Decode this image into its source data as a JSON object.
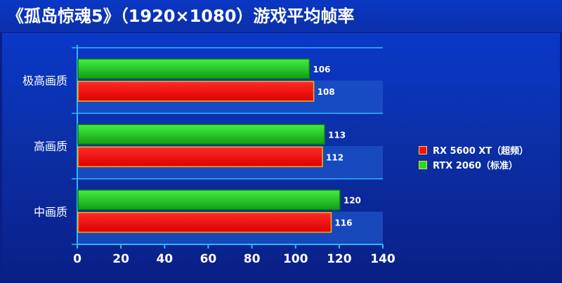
{
  "title": "《孤岛惊魂5》（1920×1080）游戏平均帧率",
  "chart_data": {
    "type": "bar",
    "orientation": "horizontal",
    "categories": [
      "极高画质",
      "高画质",
      "中画质"
    ],
    "series": [
      {
        "name": "RTX 2060（标准）",
        "values": [
          106,
          113,
          120
        ],
        "color": "#22dd22"
      },
      {
        "name": "RX 5600 XT（超频）",
        "values": [
          108,
          112,
          116
        ],
        "color": "#ff1010"
      }
    ],
    "legend_order": [
      "RX 5600 XT（超频）",
      "RTX 2060（标准）"
    ],
    "x_ticks": [
      "0",
      "20",
      "40",
      "60",
      "80",
      "100",
      "120",
      "140"
    ],
    "xlim": [
      0,
      140
    ],
    "legend_position": "right",
    "colors": {
      "axis": "#2fb7ff",
      "background": "#0a2a9e"
    }
  }
}
